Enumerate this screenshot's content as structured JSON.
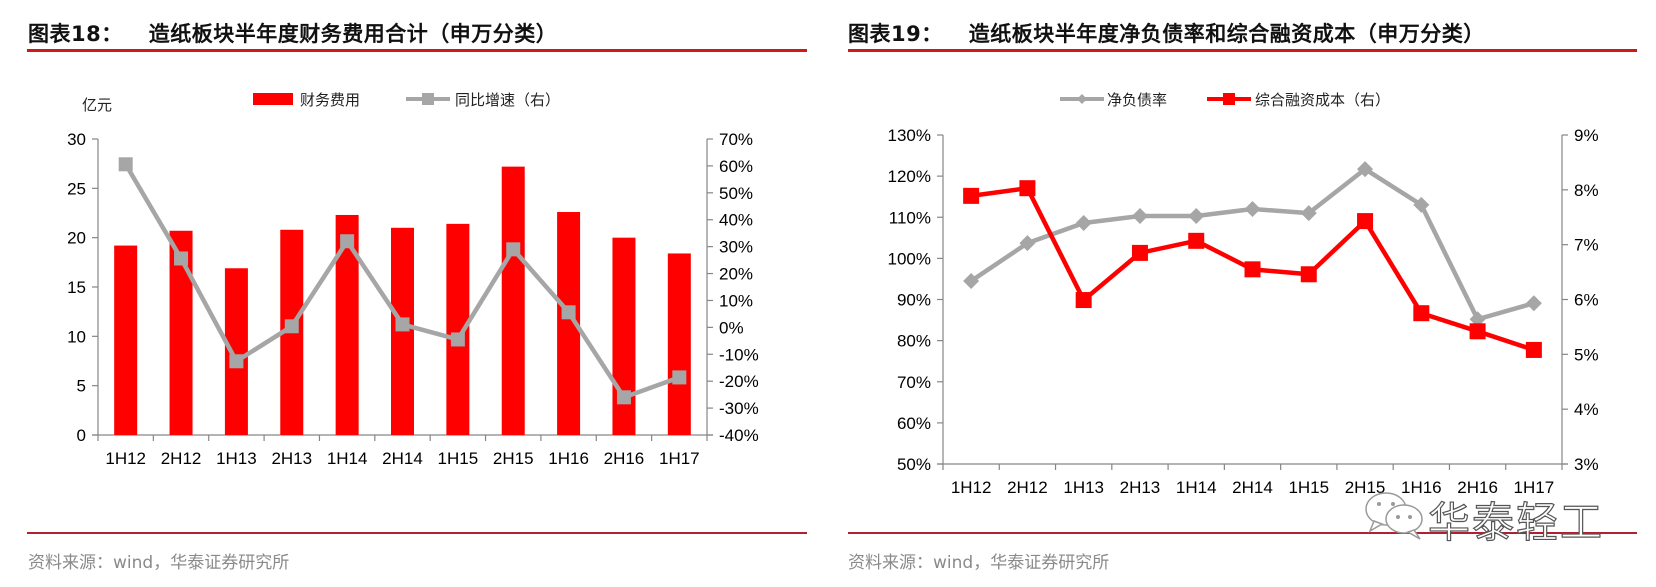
{
  "panels": [
    {
      "title_num": "图表18：",
      "title_text": "造纸板块半年度财务费用合计（申万分类）",
      "source": "资料来源：wind，华泰证券研究所"
    },
    {
      "title_num": "图表19：",
      "title_text": "造纸板块半年度净负债率和综合融资成本（申万分类）",
      "source": "资料来源：wind，华泰证券研究所"
    }
  ],
  "watermark": {
    "text": "华泰轻工",
    "icon": "wechat-icon"
  },
  "colors": {
    "red": "#ff0000",
    "gray": "#a6a6a6",
    "title_rule": "#cc1a14",
    "axis": "#868686"
  },
  "chart_data": [
    {
      "type": "bar",
      "title": "造纸板块半年度财务费用合计（申万分类）",
      "categories": [
        "1H12",
        "2H12",
        "1H13",
        "2H13",
        "1H14",
        "2H14",
        "1H15",
        "2H15",
        "1H16",
        "2H16",
        "1H17"
      ],
      "ylabel": "亿元",
      "ylim": [
        0,
        30
      ],
      "yticks": [
        "0",
        "5",
        "10",
        "15",
        "20",
        "25",
        "30"
      ],
      "y2lim": [
        -40,
        70
      ],
      "y2ticks": [
        "-40%",
        "-30%",
        "-20%",
        "-10%",
        "0%",
        "10%",
        "20%",
        "30%",
        "40%",
        "50%",
        "60%",
        "70%"
      ],
      "legend_position": "top",
      "grid": false,
      "series": [
        {
          "name": "财务费用",
          "type": "bar",
          "axis": "left",
          "color": "#ff0000",
          "values": [
            19.2,
            20.7,
            16.9,
            20.8,
            22.3,
            21.0,
            21.4,
            27.2,
            22.6,
            20.0,
            18.4
          ]
        },
        {
          "name": "同比增速（右）",
          "type": "line",
          "axis": "right",
          "marker": "square",
          "color": "#a6a6a6",
          "values": [
            60.6,
            25.6,
            -12.6,
            0.4,
            32.0,
            1.1,
            -4.5,
            29.0,
            5.6,
            -26.0,
            -18.6
          ]
        }
      ]
    },
    {
      "type": "line",
      "title": "造纸板块半年度净负债率和综合融资成本（申万分类）",
      "categories": [
        "1H12",
        "2H12",
        "1H13",
        "2H13",
        "1H14",
        "2H14",
        "1H15",
        "2H15",
        "1H16",
        "2H16",
        "1H17"
      ],
      "ylim": [
        50,
        130
      ],
      "yticks": [
        "50%",
        "60%",
        "70%",
        "80%",
        "90%",
        "100%",
        "110%",
        "120%",
        "130%"
      ],
      "y2lim": [
        3,
        9
      ],
      "y2ticks": [
        "3%",
        "4%",
        "5%",
        "6%",
        "7%",
        "8%",
        "9%"
      ],
      "legend_position": "top",
      "grid": false,
      "series": [
        {
          "name": "净负债率",
          "type": "line",
          "axis": "left",
          "marker": "diamond",
          "color": "#a6a6a6",
          "values": [
            94.5,
            103.7,
            108.6,
            110.3,
            110.3,
            112.0,
            111.0,
            121.7,
            113.0,
            85.2,
            89.1
          ]
        },
        {
          "name": "综合融资成本（右）",
          "type": "line",
          "axis": "right",
          "marker": "square",
          "color": "#ff0000",
          "values": [
            7.89,
            8.03,
            5.99,
            6.85,
            7.07,
            6.55,
            6.46,
            7.43,
            5.75,
            5.42,
            5.08
          ]
        }
      ]
    }
  ]
}
